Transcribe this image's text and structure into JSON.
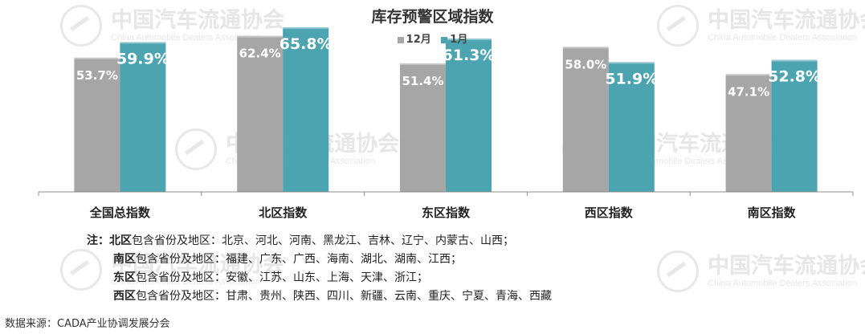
{
  "watermark": {
    "name_cn": "中国汽车流通协会",
    "name_en": "China Automobile Dealers Association",
    "logo_text": "CADA"
  },
  "colors": {
    "dec": "#a6a6a6",
    "jan": "#4ba4b0",
    "axis": "#8c8c8c"
  },
  "chart_data": {
    "type": "bar",
    "title": "库存预警区域指数",
    "categories": [
      "全国总指数",
      "北区指数",
      "东区指数",
      "西区指数",
      "南区指数"
    ],
    "series": [
      {
        "name": "12月",
        "values": [
          53.7,
          62.4,
          51.4,
          58.0,
          47.1
        ],
        "labels": [
          "53.7%",
          "62.4%",
          "51.4%",
          "58.0%",
          "47.1%"
        ]
      },
      {
        "name": "1月",
        "values": [
          59.9,
          65.8,
          61.3,
          51.9,
          52.8
        ],
        "labels": [
          "59.9%",
          "65.8%",
          "61.3%",
          "51.9%",
          "52.8%"
        ]
      }
    ],
    "ylim": [
      0,
      70
    ],
    "grid": false,
    "legend": "top-center"
  },
  "notes": {
    "prefix": "注：",
    "lines": [
      {
        "region": "北区",
        "text": "包含省份及地区：北京、河北、河南、黑龙江、吉林、辽宁、内蒙古、山西；"
      },
      {
        "region": "南区",
        "text": "包含省份及地区：福建、广东、广西、海南、湖北、湖南、江西；"
      },
      {
        "region": "东区",
        "text": "包含省份及地区：安徽、江苏、山东、上海、天津、浙江；"
      },
      {
        "region": "西区",
        "text": "包含省份及地区：甘肃、贵州、陕西、四川、新疆、云南、重庆、宁夏、青海、西藏"
      }
    ]
  },
  "source": "数据来源：CADA产业协调发展分会"
}
